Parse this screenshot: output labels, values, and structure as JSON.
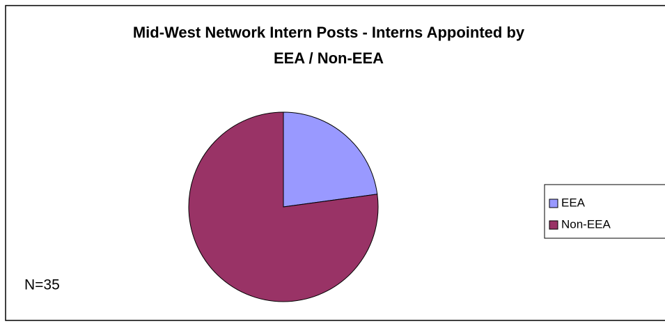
{
  "chart_data": {
    "type": "pie",
    "title": "Mid-West Network Intern Posts - Interns Appointed by EEA / Non-EEA",
    "categories": [
      "EEA",
      "Non-EEA"
    ],
    "values": [
      8,
      27
    ],
    "colors": [
      "#9999ff",
      "#993366"
    ],
    "annotation": "N=35",
    "legend": "right"
  }
}
